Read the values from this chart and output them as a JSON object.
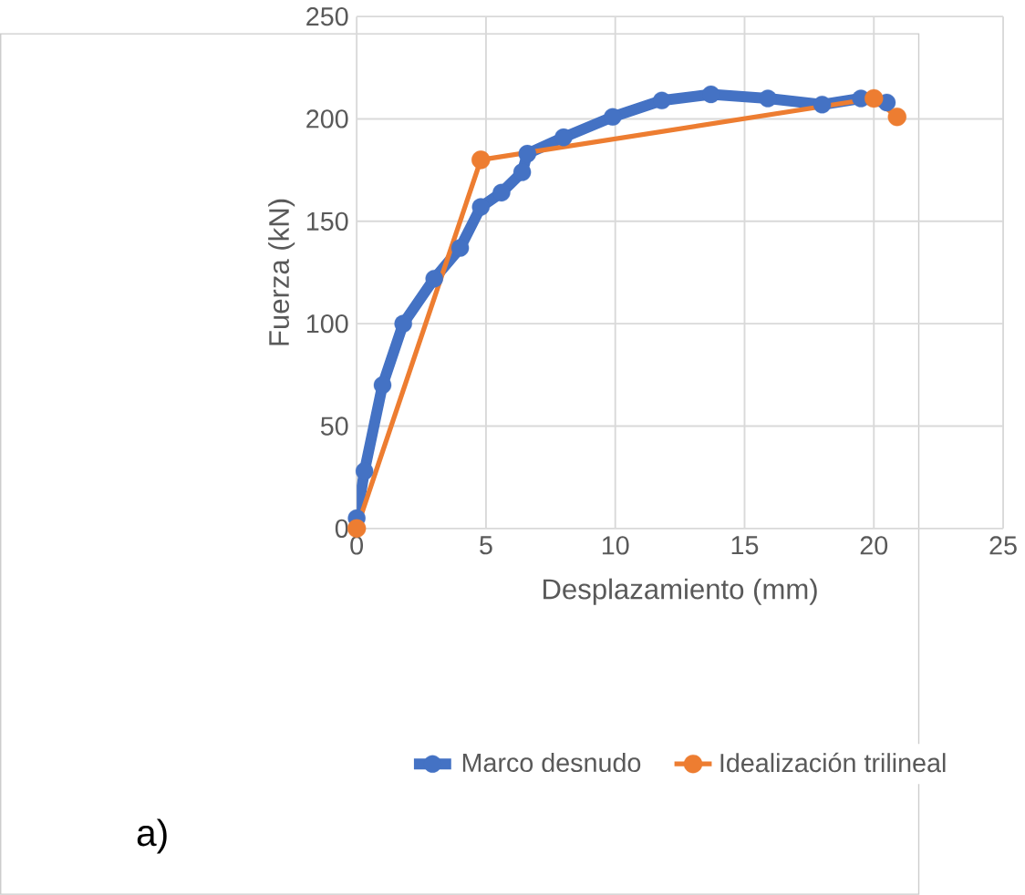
{
  "chart_data": {
    "type": "line",
    "xlabel": "Desplazamiento (mm)",
    "ylabel": "Fuerza (kN)",
    "xlim": [
      0,
      25
    ],
    "ylim": [
      0,
      250
    ],
    "xticks": [
      0,
      5,
      10,
      15,
      20,
      25
    ],
    "yticks": [
      0,
      50,
      100,
      150,
      200,
      250
    ],
    "grid": true,
    "legend": "bottom",
    "marker": "circle",
    "series": [
      {
        "name": "Marco desnudo",
        "color": "#4472c4",
        "x": [
          0,
          0.3,
          1.0,
          1.8,
          3.0,
          4.0,
          4.8,
          5.6,
          6.4,
          6.6,
          8.0,
          9.9,
          11.8,
          13.7,
          15.9,
          18.0,
          19.5,
          20.5
        ],
        "values": [
          5,
          28,
          70,
          100,
          122,
          137,
          157,
          164,
          174,
          183,
          191,
          201,
          209,
          212,
          210,
          207,
          210,
          208
        ]
      },
      {
        "name": "Idealización trilineal",
        "color": "#ed7d31",
        "x": [
          0,
          4.8,
          20,
          20.9
        ],
        "values": [
          0,
          180,
          210,
          201
        ]
      }
    ],
    "annotations": [
      "a)"
    ]
  }
}
